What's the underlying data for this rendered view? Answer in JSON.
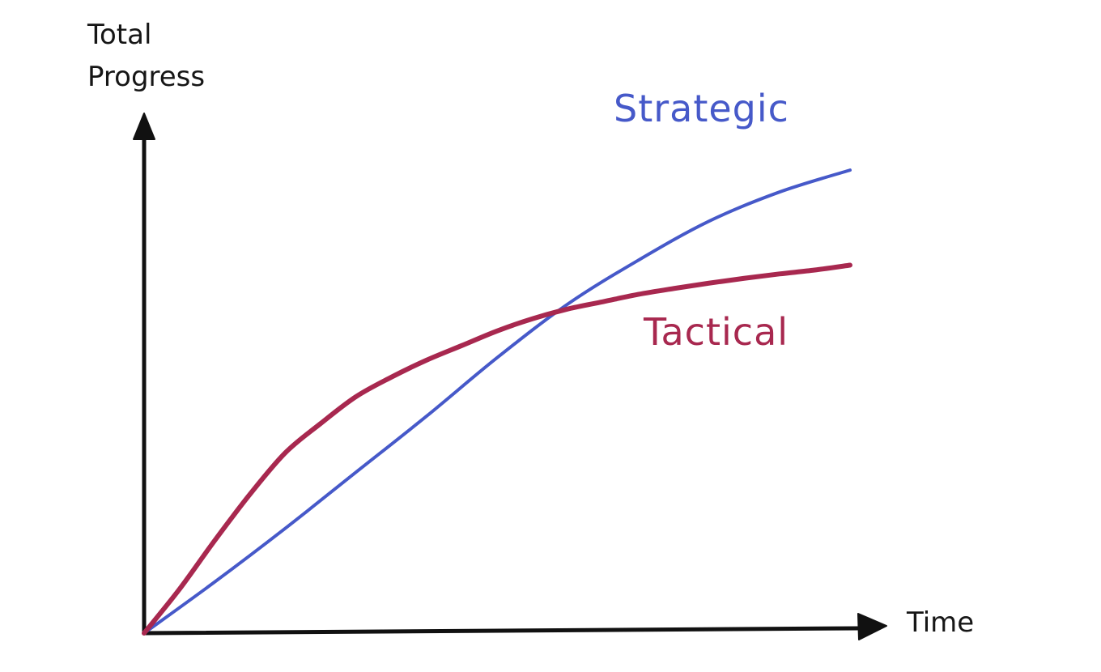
{
  "chart_data": {
    "type": "line",
    "xlabel": "Time",
    "ylabel_lines": [
      "Total",
      "Progress"
    ],
    "xlim": [
      0,
      100
    ],
    "ylim": [
      0,
      100
    ],
    "grid": false,
    "legend": "inline-labels",
    "series": [
      {
        "name": "Strategic",
        "color": "#4659c9",
        "x": [
          0,
          10,
          20,
          30,
          40,
          50,
          60,
          70,
          80,
          90,
          100
        ],
        "y": [
          0,
          10.5,
          21.5,
          33,
          44.5,
          56.5,
          67.5,
          76.5,
          84.5,
          90.5,
          95
        ]
      },
      {
        "name": "Tactical",
        "color": "#a8284f",
        "x": [
          0,
          5,
          10,
          15,
          20,
          25,
          30,
          35,
          40,
          45,
          50,
          55,
          60,
          65,
          70,
          75,
          80,
          85,
          90,
          95,
          100
        ],
        "y": [
          0,
          9,
          19,
          28.5,
          37,
          43,
          48.5,
          52.5,
          56,
          59,
          62,
          64.5,
          66.5,
          68,
          69.5,
          70.7,
          71.8,
          72.8,
          73.7,
          74.5,
          75.5
        ]
      }
    ]
  }
}
